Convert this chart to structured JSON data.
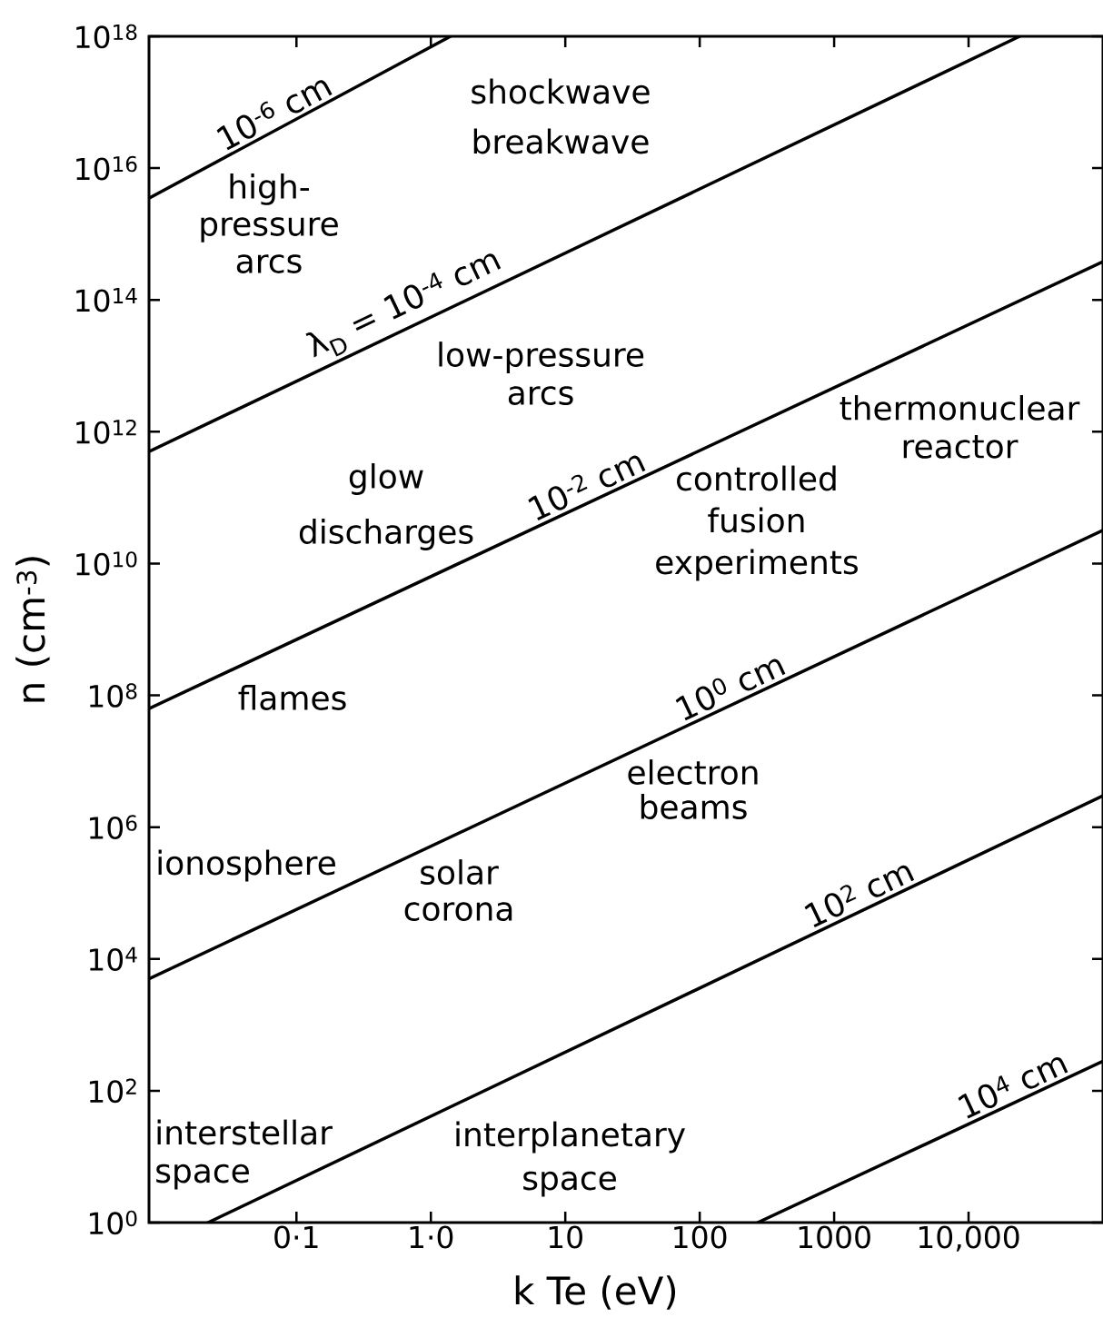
{
  "chart_data": {
    "type": "line",
    "xlabel": "k Te (eV)",
    "ylabel": "n (cm$^{-3}$)",
    "log": "xy",
    "xlim": [
      0.008,
      100000
    ],
    "ylim": [
      1,
      1e+18
    ],
    "xticks": [
      {
        "value": 0.1,
        "label": "0·1"
      },
      {
        "value": 1,
        "label": "1·0"
      },
      10,
      100,
      1000,
      {
        "value": 10000,
        "label": "10,000"
      }
    ],
    "yticks": [
      {
        "value": 1,
        "label": "10$^{0}$"
      },
      {
        "value": 100,
        "label": "10$^{2}$"
      },
      {
        "value": 10000.0,
        "label": "10$^{4}$"
      },
      {
        "value": 1000000.0,
        "label": "10$^{6}$"
      },
      {
        "value": 100000000.0,
        "label": "10$^{8}$"
      },
      {
        "value": 10000000000.0,
        "label": "10$^{10}$"
      },
      {
        "value": 1000000000000.0,
        "label": "10$^{12}$"
      },
      {
        "value": 100000000000000.0,
        "label": "10$^{14}$"
      },
      {
        "value": 1e+16,
        "label": "10$^{16}$"
      },
      {
        "value": 1e+18,
        "label": "10$^{18}$"
      }
    ],
    "marker": "none",
    "line_style": "solid",
    "series": [
      {
        "color": "#000000",
        "x": [
          0.008,
          1.4
        ],
        "values": [
          3500000000000000.0,
          1e+18
        ]
      },
      {
        "color": "#000000",
        "x": [
          0.008,
          24000
        ],
        "values": [
          500000000000.0,
          1e+18
        ]
      },
      {
        "color": "#000000",
        "x": [
          0.008,
          100000
        ],
        "values": [
          63000000.0,
          380000000000000.0
        ]
      },
      {
        "color": "#000000",
        "x": [
          0.008,
          100000
        ],
        "values": [
          5000.0,
          32000000000.0
        ]
      },
      {
        "color": "#000000",
        "x": [
          0.022,
          100000
        ],
        "values": [
          1,
          3000000.0
        ]
      },
      {
        "color": "#000000",
        "x": [
          270,
          100000
        ],
        "values": [
          1,
          280
        ]
      }
    ],
    "annotations": [
      {
        "text": "10$^{-6}$ cm",
        "x": 0.078,
        "y": 4.2e+16
      },
      "shockwave breakwave",
      "high-pressure arcs",
      {
        "text": "λ$_{D}$ = 10$^{-4}$ cm",
        "x": 0.75,
        "y": 42000000000000.0
      },
      "low-pressure arcs",
      "thermonuclear reactor",
      "glow discharges",
      {
        "text": "10$^{-2}$ cm",
        "x": 16.2,
        "y": 91000000000.0
      },
      "controlled fusion experiments",
      {
        "text": "10$^{0}$ cm",
        "x": 190,
        "y": 79000000.0
      },
      "flames",
      "electron beams",
      "ionosphere",
      "solar corona",
      {
        "text": "10$^{2}$ cm",
        "x": 1730,
        "y": 58000.0
      },
      {
        "text": "10$^{4}$ cm",
        "x": 24000,
        "y": 72
      },
      "interstellar space",
      "interplanetary space"
    ]
  }
}
